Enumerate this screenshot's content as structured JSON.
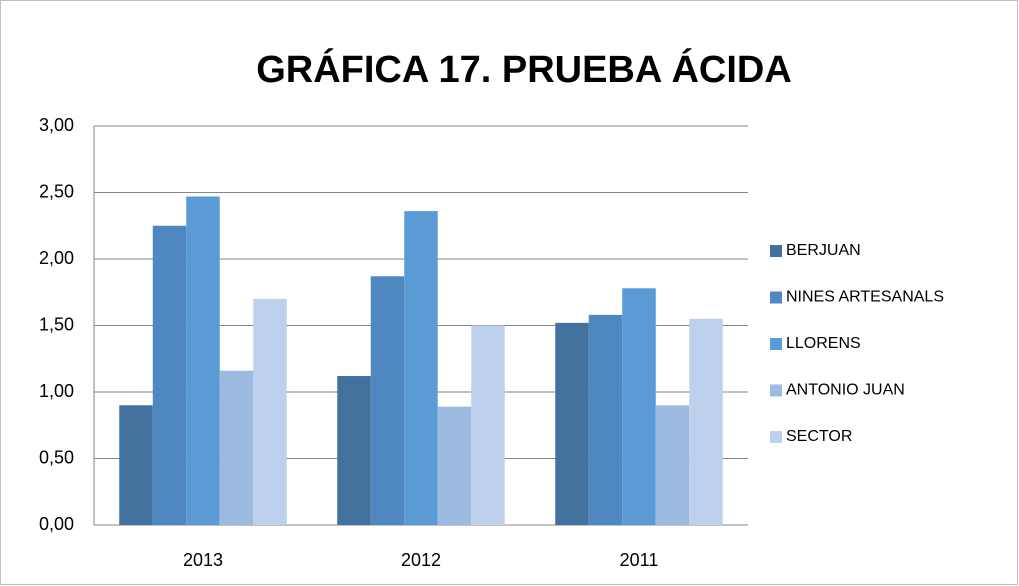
{
  "chart_data": {
    "type": "bar",
    "title": "GRÁFICA 17. PRUEBA ÁCIDA",
    "categories": [
      "2013",
      "2012",
      "2011"
    ],
    "series": [
      {
        "name": "BERJUAN",
        "color": "#41719c",
        "values": [
          0.9,
          1.12,
          1.52
        ]
      },
      {
        "name": "NINES ARTESANALS",
        "color": "#4f88c0",
        "values": [
          2.25,
          1.87,
          1.58
        ]
      },
      {
        "name": "LLORENS",
        "color": "#5b9bd5",
        "values": [
          2.47,
          2.36,
          1.78
        ]
      },
      {
        "name": "ANTONIO JUAN",
        "color": "#9dbbe0",
        "values": [
          1.16,
          0.89,
          0.9
        ]
      },
      {
        "name": "SECTOR",
        "color": "#bdd1ec",
        "values": [
          1.7,
          1.5,
          1.55
        ]
      }
    ],
    "ylim": [
      0,
      3
    ],
    "yticks": [
      {
        "value": 0,
        "label": "0,00"
      },
      {
        "value": 0.5,
        "label": "0,50"
      },
      {
        "value": 1,
        "label": "1,00"
      },
      {
        "value": 1.5,
        "label": "1,50"
      },
      {
        "value": 2,
        "label": "2,00"
      },
      {
        "value": 2.5,
        "label": "2,50"
      },
      {
        "value": 3,
        "label": "3,00"
      }
    ],
    "grid": true,
    "legend": "right"
  }
}
